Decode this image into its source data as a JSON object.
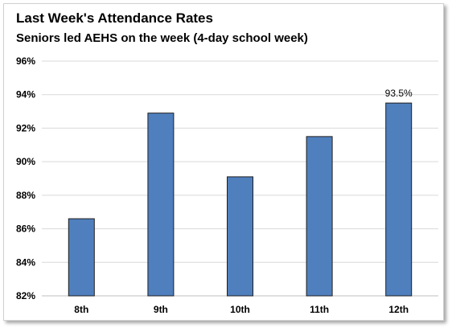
{
  "chart_data": {
    "type": "bar",
    "title": "Last Week's Attendance Rates",
    "subtitle": "Seniors led AEHS on the week (4-day school week)",
    "categories": [
      "8th",
      "9th",
      "10th",
      "11th",
      "12th"
    ],
    "values": [
      86.6,
      92.9,
      89.1,
      91.5,
      93.5
    ],
    "data_labels": [
      null,
      null,
      null,
      null,
      "93.5%"
    ],
    "ylim": [
      82,
      96
    ],
    "yticks": [
      82,
      84,
      86,
      88,
      90,
      92,
      94,
      96
    ],
    "ytick_labels": [
      "82%",
      "84%",
      "86%",
      "88%",
      "90%",
      "92%",
      "94%",
      "96%"
    ],
    "xlabel": "",
    "ylabel": "",
    "grid": true,
    "legend": "none",
    "colors": {
      "bar_fill": "#4f7fbd",
      "bar_stroke": "#1f1f1f",
      "grid": "#d9d9d9",
      "axis": "#bfbfbf"
    }
  }
}
